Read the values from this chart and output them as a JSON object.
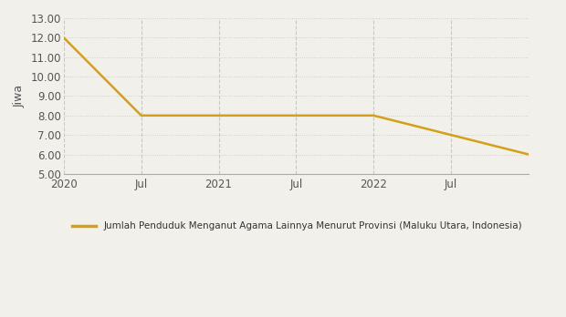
{
  "x_values": [
    0,
    6,
    12,
    18,
    24,
    30,
    36
  ],
  "y_values": [
    12.0,
    8.0,
    8.0,
    8.0,
    8.0,
    7.0,
    6.0
  ],
  "line_color": "#D4A017",
  "line_width": 1.8,
  "ylabel": "Jiwa",
  "ylim": [
    5.0,
    13.0
  ],
  "yticks": [
    5.0,
    6.0,
    7.0,
    8.0,
    9.0,
    10.0,
    11.0,
    12.0,
    13.0
  ],
  "xtick_positions": [
    0,
    6,
    12,
    18,
    24,
    30,
    36
  ],
  "xtick_labels": [
    "2020",
    "Jul",
    "2021",
    "Jul",
    "2022",
    "Jul",
    ""
  ],
  "grid_color": "#c8c8c8",
  "background_color": "#f2f0eb",
  "legend_label": "Jumlah Penduduk Menganut Agama Lainnya Menurut Provinsi (Maluku Utara, Indonesia)",
  "axis_fontsize": 9,
  "tick_fontsize": 8.5,
  "legend_fontsize": 7.5,
  "tick_color": "#555555"
}
